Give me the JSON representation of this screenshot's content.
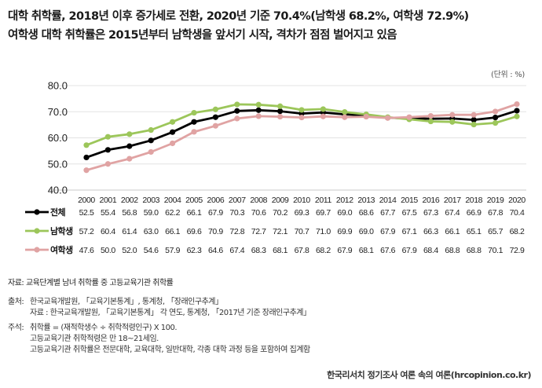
{
  "header": {
    "title_line1": "대학 취학률, 2018년 이후 증가세로 전환, 2020년 기준 70.4%(남학생 68.2%, 여학생 72.9%)",
    "title_line2": "여학생 대학 취학률은 2015년부터 남학생을 앞서기 시작, 격차가 점점 벌어지고 있음",
    "unit": "(단위 : %)"
  },
  "chart_data": {
    "type": "line",
    "x": [
      "2000",
      "2001",
      "2002",
      "2003",
      "2004",
      "2005",
      "2006",
      "2007",
      "2008",
      "2009",
      "2010",
      "2011",
      "2012",
      "2013",
      "2014",
      "2015",
      "2016",
      "2017",
      "2018",
      "2019",
      "2020"
    ],
    "yticks": [
      "40.0",
      "50.0",
      "60.0",
      "70.0",
      "80.0"
    ],
    "ylim": [
      40,
      80
    ],
    "grid": true,
    "legend": "table-left",
    "series": [
      {
        "name": "전체",
        "color": "#000000",
        "values": [
          52.5,
          55.4,
          56.8,
          59.0,
          62.2,
          66.1,
          67.9,
          70.3,
          70.6,
          70.2,
          69.3,
          69.7,
          69.0,
          68.6,
          67.7,
          67.5,
          67.3,
          67.4,
          66.9,
          67.8,
          70.4
        ],
        "labels": [
          "52.5",
          "55.4",
          "56.8",
          "59.0",
          "62.2",
          "66.1",
          "67.9",
          "70.3",
          "70.6",
          "70.2",
          "69.3",
          "69.7",
          "69.0",
          "68.6",
          "67.7",
          "67.5",
          "67.3",
          "67.4",
          "66.9",
          "67.8",
          "70.4"
        ]
      },
      {
        "name": "남학생",
        "color": "#9cc65a",
        "values": [
          57.2,
          60.4,
          61.4,
          63.0,
          66.1,
          69.6,
          70.9,
          72.8,
          72.7,
          72.1,
          70.7,
          71.0,
          69.9,
          69.0,
          67.9,
          67.1,
          66.3,
          66.1,
          65.1,
          65.7,
          68.2
        ],
        "labels": [
          "57.2",
          "60.4",
          "61.4",
          "63.0",
          "66.1",
          "69.6",
          "70.9",
          "72.8",
          "72.7",
          "72.1",
          "70.7",
          "71.0",
          "69.9",
          "69.0",
          "67.9",
          "67.1",
          "66.3",
          "66.1",
          "65.1",
          "65.7",
          "68.2"
        ]
      },
      {
        "name": "여학생",
        "color": "#e0a3a3",
        "values": [
          47.6,
          50.0,
          52.0,
          54.6,
          57.9,
          62.3,
          64.6,
          67.4,
          68.3,
          68.1,
          67.8,
          68.2,
          67.9,
          68.1,
          67.6,
          67.9,
          68.4,
          68.8,
          68.8,
          70.1,
          72.9
        ],
        "labels": [
          "47.6",
          "50.0",
          "52.0",
          "54.6",
          "57.9",
          "62.3",
          "64.6",
          "67.4",
          "68.3",
          "68.1",
          "67.8",
          "68.2",
          "67.9",
          "68.1",
          "67.6",
          "67.9",
          "68.4",
          "68.8",
          "68.8",
          "70.1",
          "72.9"
        ]
      }
    ]
  },
  "notes": {
    "data_label": "자료: 교육단계별 남녀 취학률 중 고등교육기관 취학률",
    "source_label": "출처:",
    "source_lines": [
      "한국교육개발원, 「교육기본통계」, 통계청, 「장래인구추계」",
      "자료 : 한국교육개발원, 「교육기본통계」 각 연도, 통계청, 「2017년 기준 장래인구추계」"
    ],
    "note_label": "주석:",
    "note_lines": [
      "취학률 = (재적학생수 ÷ 취학적령인구) X 100.",
      "고등교육기관 취학적령은 만 18~21세임.",
      "고등교육기관 취학률은 전문대학, 교육대학, 일반대학, 각종 대학 과정 등을 포함하여 집계함"
    ]
  },
  "footer": "한국리서치 정기조사 여론 속의 여론(hrcopinion.co.kr)"
}
